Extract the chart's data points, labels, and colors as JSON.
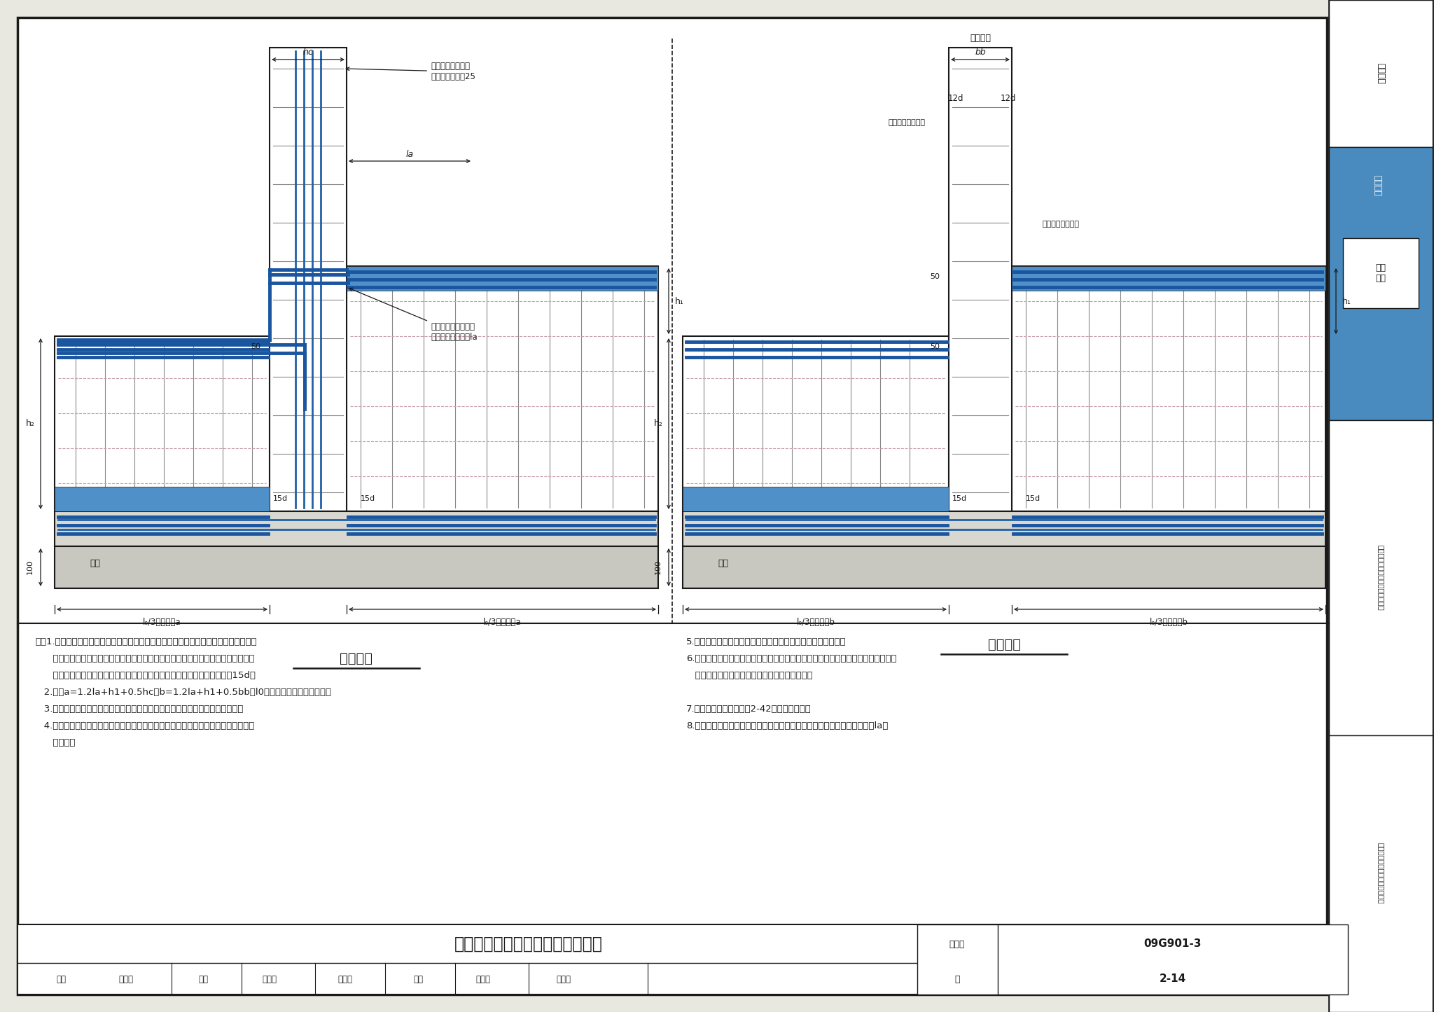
{
  "title": "基础梁梁顶有高差时钢筋排布构造",
  "page_num": "2-14",
  "atlas_num": "09G901-3",
  "bg_color": "#e8e8e0",
  "white": "#ffffff",
  "steel_blue": "#2060a8",
  "rebar_blue": "#1a55a0",
  "fill_blue": "#5090c8",
  "gray_line": "#888888",
  "pink_dash": "#c8a0b0",
  "dark": "#1a1a1a",
  "tab_blue": "#4a8bbf",
  "left_label": "基础主梁",
  "right_label": "基础次梁",
  "note_left_lines": [
    "注：1.支座两侧的钢筋应协调配置，当两侧配筋不同时，应将配筋小的一侧的钢筋全部穿",
    "      过支座，配筋大的一侧再配置差额钢筋。差额钢筋在柱内锚固，当柱内锚固长度不",
    "      能满足图中标示长度时，可在柱钢筋内侧向下弯折，向下弯折长度不小于15d。",
    "   2.图中a=1.2la+h1+0.5hc，b=1.2la+h1+0.5bb，l0为支座两侧跨度的较大值。",
    "   3.跨内纵向钢筋构造、箍筋复合方式及相关要求应符合本图集相应的构造要求。",
    "   4.本图节点内的梁、柱均有箍筋，施工前应组织好施工顺序，以避免梁或柱的箍筋无",
    "      法放置。"
  ],
  "note_right_lines": [
    "5.基础主梁相交处的交叉钢筋的位置关系，应按具体设计说明。",
    "6.当基础梁变标高及变截面形式与本图不同时，其构造应由设计者设计，当施工要求",
    "   参照本图构造方式时，应提供相应的变更说明。",
    "",
    "7.柱插筋应满足本图集第2-42页的构造要求。",
    "8.当设计注明基础梁中的侧面钢筋为抗扭钢筋且未贯通施工时，锚固长度为la。"
  ]
}
